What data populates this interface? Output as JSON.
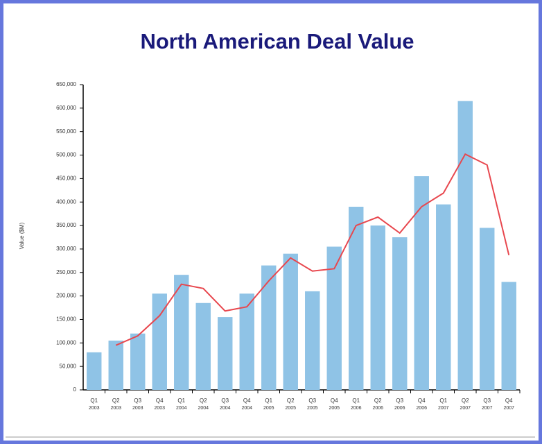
{
  "chart_data": {
    "type": "bar",
    "title": "North American Deal Value",
    "y_label": "Value ($M)",
    "categories": [
      [
        "Q1",
        "2003"
      ],
      [
        "Q2",
        "2003"
      ],
      [
        "Q3",
        "2003"
      ],
      [
        "Q4",
        "2003"
      ],
      [
        "Q1",
        "2004"
      ],
      [
        "Q2",
        "2004"
      ],
      [
        "Q3",
        "2004"
      ],
      [
        "Q4",
        "2004"
      ],
      [
        "Q1",
        "2005"
      ],
      [
        "Q2",
        "2005"
      ],
      [
        "Q3",
        "2005"
      ],
      [
        "Q4",
        "2005"
      ],
      [
        "Q1",
        "2006"
      ],
      [
        "Q2",
        "2006"
      ],
      [
        "Q3",
        "2006"
      ],
      [
        "Q4",
        "2006"
      ],
      [
        "Q1",
        "2007"
      ],
      [
        "Q2",
        "2007"
      ],
      [
        "Q3",
        "2007"
      ],
      [
        "Q4",
        "2007"
      ]
    ],
    "series": [
      {
        "type": "bar",
        "color": "#8fc3e6",
        "values": [
          80000,
          105000,
          120000,
          205000,
          245000,
          185000,
          155000,
          205000,
          265000,
          290000,
          210000,
          305000,
          390000,
          350000,
          325000,
          455000,
          395000,
          615000,
          345000,
          230000
        ]
      },
      {
        "type": "line",
        "color": "#e8474e",
        "values": [
          null,
          95000,
          115000,
          158000,
          225000,
          216000,
          168000,
          177000,
          232000,
          281000,
          253000,
          258000,
          350000,
          368000,
          334000,
          390000,
          419000,
          502000,
          479000,
          287000
        ]
      }
    ],
    "ylim": [
      0,
      650000
    ],
    "yticks": [
      0,
      {
        "value": 50000,
        "label": "50,000"
      },
      {
        "value": 100000,
        "label": "100,000"
      },
      {
        "value": 150000,
        "label": "150,000"
      },
      {
        "value": 200000,
        "label": "200,000"
      },
      {
        "value": 250000,
        "label": "250,000"
      },
      {
        "value": 300000,
        "label": "300,000"
      },
      {
        "value": 350000,
        "label": "350,000"
      },
      {
        "value": 400000,
        "label": "400,000"
      },
      {
        "value": 450000,
        "label": "450,000"
      },
      {
        "value": 500000,
        "label": "500,000"
      },
      {
        "value": 550000,
        "label": "550,000"
      },
      {
        "value": 600000,
        "label": "600,000"
      },
      {
        "value": 650000,
        "label": "650,000"
      }
    ]
  }
}
